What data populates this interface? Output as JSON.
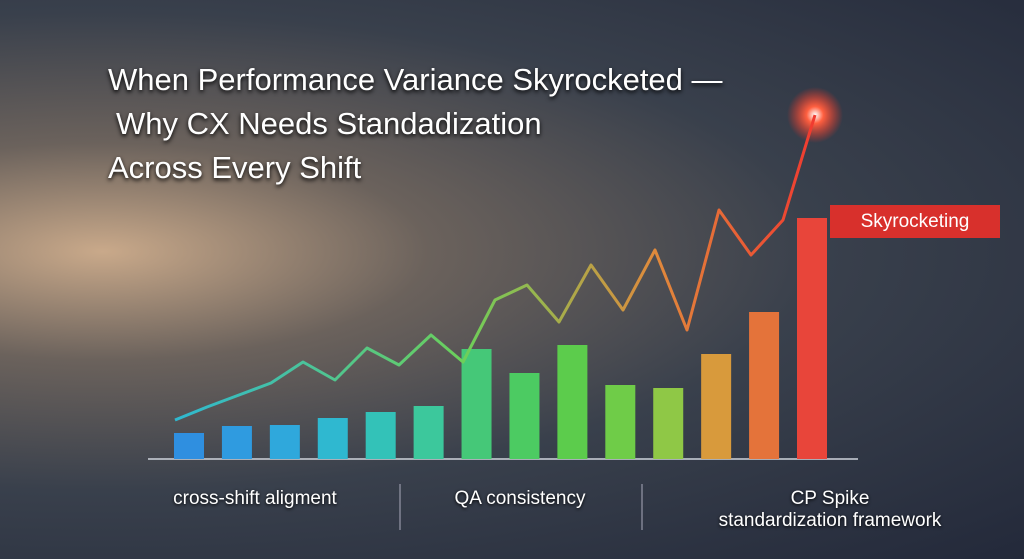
{
  "header": {
    "title_lines": [
      "When Performance Variance Skyrocketed —",
      "Why CX Needs Standadization",
      "Across Every Shift"
    ]
  },
  "badge": {
    "label": "Skyrocketing"
  },
  "captions": [
    "cross-shift aligment",
    "QA consistency",
    "CP Spike\nstandardization framework"
  ],
  "bars": {
    "values": [
      26,
      33,
      34,
      41,
      47,
      53,
      110,
      86,
      114,
      74,
      71,
      105,
      147,
      241
    ],
    "colors": [
      "#2f8fe0",
      "#2f9be0",
      "#2fa8dc",
      "#2fb8d0",
      "#33c2b8",
      "#3cc89c",
      "#45c878",
      "#4ccb62",
      "#5ccc4c",
      "#6fcc48",
      "#8fc846",
      "#d89a3c",
      "#e4733a",
      "#e8453a"
    ]
  },
  "trend": {
    "values": [
      39,
      52,
      64,
      76,
      97,
      79,
      111,
      94,
      124,
      97,
      159,
      174,
      137,
      194,
      149,
      209,
      129,
      249,
      204,
      239,
      344
    ]
  }
}
